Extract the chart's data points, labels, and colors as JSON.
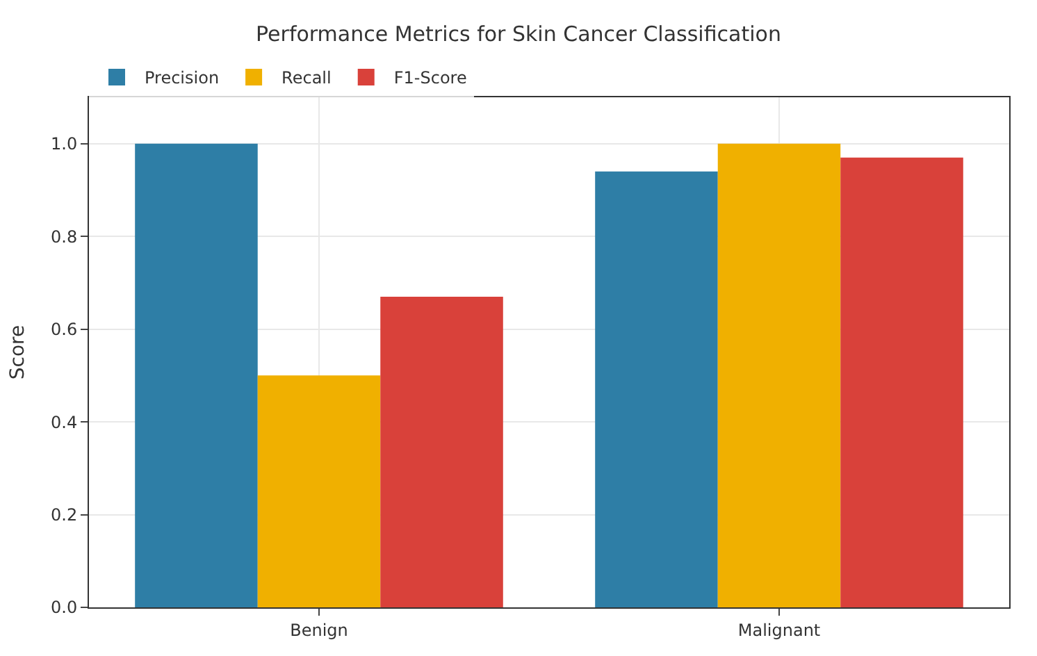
{
  "chart_data": {
    "type": "bar",
    "title": "Performance Metrics for Skin Cancer Classification",
    "ylabel": "Score",
    "categories": [
      "Benign",
      "Malignant"
    ],
    "series": [
      {
        "name": "Precision",
        "color": "#2e7ea6",
        "values": [
          1.0,
          0.94
        ]
      },
      {
        "name": "Recall",
        "color": "#f0b000",
        "values": [
          0.5,
          1.0
        ]
      },
      {
        "name": "F1-Score",
        "color": "#d9413a",
        "values": [
          0.67,
          0.97
        ]
      }
    ],
    "ylim": [
      0,
      1.1
    ],
    "yticks": [
      {
        "value": 0,
        "label": "0.0"
      },
      0.2,
      0.4,
      0.6,
      0.8,
      {
        "value": 1,
        "label": "1.0"
      }
    ],
    "grid": true,
    "legend": "top left"
  }
}
